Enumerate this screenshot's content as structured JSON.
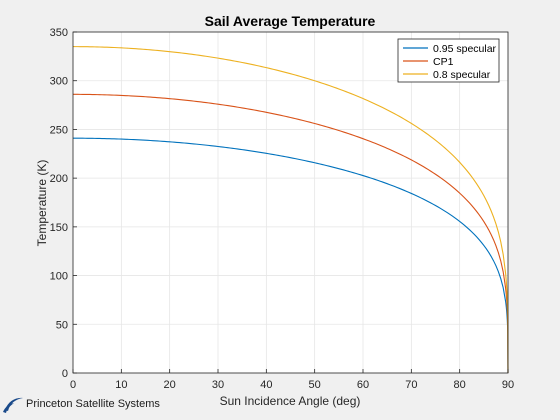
{
  "chart_data": {
    "type": "line",
    "title": "Sail Average Temperature",
    "xlabel": "Sun Incidence Angle (deg)",
    "ylabel": "Temperature (K)",
    "xlim": [
      0,
      90
    ],
    "ylim": [
      0,
      350
    ],
    "xticks": [
      0,
      10,
      20,
      30,
      40,
      50,
      60,
      70,
      80,
      90
    ],
    "yticks": [
      0,
      50,
      100,
      150,
      200,
      250,
      300,
      350
    ],
    "grid": true,
    "legend_position": "top-right",
    "series": [
      {
        "name": "0.95 specular",
        "color": "#0072bd",
        "x": [
          0,
          10,
          20,
          30,
          40,
          50,
          60,
          70,
          80,
          85,
          88,
          89,
          89.5,
          90
        ],
        "y": [
          241,
          240,
          236,
          231,
          224,
          214,
          200,
          184,
          159,
          138,
          113,
          97,
          82,
          0
        ]
      },
      {
        "name": "CP1",
        "color": "#d95319",
        "x": [
          0,
          10,
          20,
          30,
          40,
          50,
          60,
          70,
          80,
          85,
          88,
          89,
          89.5,
          90
        ],
        "y": [
          286,
          285,
          281,
          274,
          266,
          254,
          238,
          218,
          188,
          164,
          134,
          113,
          95,
          0
        ]
      },
      {
        "name": "0.8 specular",
        "color": "#edb120",
        "x": [
          0,
          10,
          20,
          30,
          40,
          50,
          60,
          70,
          80,
          85,
          88,
          89,
          89.5,
          90
        ],
        "y": [
          335,
          333,
          329,
          322,
          311,
          298,
          279,
          255,
          220,
          192,
          157,
          132,
          111,
          0
        ]
      }
    ]
  },
  "logo": {
    "text": "Princeton Satellite Systems",
    "icon": "swoosh-logo-icon",
    "color": "#1a4a8a"
  }
}
